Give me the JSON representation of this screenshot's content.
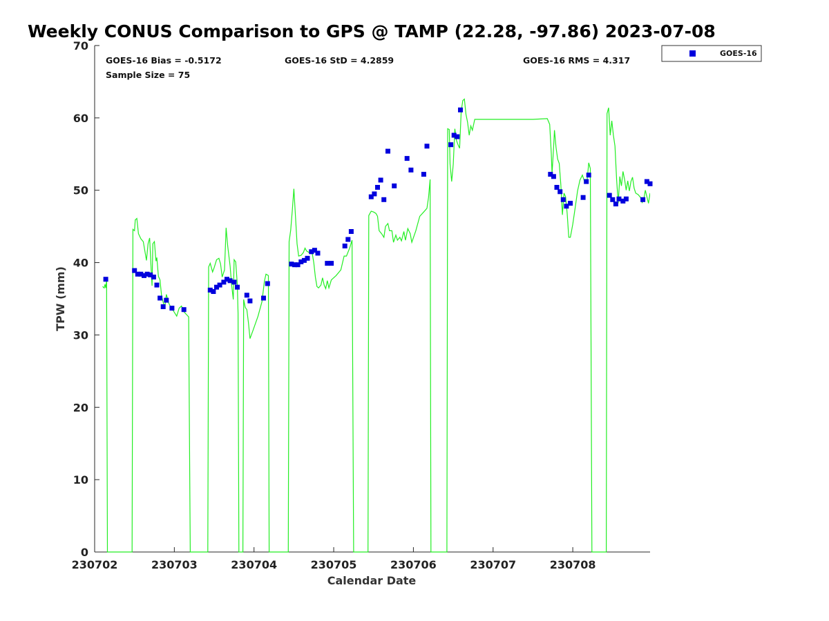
{
  "chart_data": {
    "type": "scatter",
    "title": "Weekly CONUS Comparison to GPS @ TAMP (22.28, -97.86) 2023-07-08",
    "xlabel": "Calendar Date",
    "ylabel": "TPW (mm)",
    "x_tick_labels": [
      "230702",
      "230703",
      "230704",
      "230705",
      "230706",
      "230707",
      "230708"
    ],
    "x_tick_days": [
      2,
      3,
      4,
      5,
      6,
      7,
      8
    ],
    "xlim": [
      2,
      8.97
    ],
    "ylim": [
      0,
      70
    ],
    "y_ticks": [
      0,
      10,
      20,
      30,
      40,
      50,
      60,
      70
    ],
    "grid": false,
    "legend_position": "top-right, outside",
    "stats": {
      "bias": "GOES-16 Bias = -0.5172",
      "std": "GOES-16 StD = 4.2859",
      "rms": "GOES-16 RMS = 4.317",
      "sample": "Sample Size = 75"
    },
    "colors": {
      "goes": "#0000dd",
      "gps": "#22ee22"
    },
    "series": [
      {
        "name": "GOES-16",
        "marker": "square",
        "points": [
          [
            2.14,
            37.7
          ],
          [
            2.5,
            38.9
          ],
          [
            2.54,
            38.4
          ],
          [
            2.58,
            38.4
          ],
          [
            2.62,
            38.2
          ],
          [
            2.66,
            38.4
          ],
          [
            2.7,
            38.3
          ],
          [
            2.74,
            38.0
          ],
          [
            2.78,
            36.9
          ],
          [
            2.82,
            35.1
          ],
          [
            2.86,
            33.9
          ],
          [
            2.9,
            34.8
          ],
          [
            2.97,
            33.7
          ],
          [
            3.12,
            33.5
          ],
          [
            3.45,
            36.2
          ],
          [
            3.49,
            36.0
          ],
          [
            3.53,
            36.6
          ],
          [
            3.57,
            36.9
          ],
          [
            3.62,
            37.3
          ],
          [
            3.66,
            37.7
          ],
          [
            3.7,
            37.5
          ],
          [
            3.75,
            37.3
          ],
          [
            3.79,
            36.6
          ],
          [
            3.91,
            35.5
          ],
          [
            3.95,
            34.7
          ],
          [
            4.12,
            35.1
          ],
          [
            4.17,
            37.1
          ],
          [
            4.47,
            39.8
          ],
          [
            4.51,
            39.7
          ],
          [
            4.55,
            39.7
          ],
          [
            4.59,
            40.1
          ],
          [
            4.63,
            40.3
          ],
          [
            4.67,
            40.6
          ],
          [
            4.72,
            41.5
          ],
          [
            4.76,
            41.7
          ],
          [
            4.8,
            41.3
          ],
          [
            4.92,
            39.9
          ],
          [
            4.97,
            39.9
          ],
          [
            5.14,
            42.3
          ],
          [
            5.18,
            43.2
          ],
          [
            5.22,
            44.3
          ],
          [
            5.47,
            49.1
          ],
          [
            5.51,
            49.5
          ],
          [
            5.55,
            50.4
          ],
          [
            5.59,
            51.4
          ],
          [
            5.63,
            48.7
          ],
          [
            5.68,
            55.4
          ],
          [
            5.76,
            50.6
          ],
          [
            5.92,
            54.4
          ],
          [
            5.97,
            52.8
          ],
          [
            6.13,
            52.2
          ],
          [
            6.17,
            56.1
          ],
          [
            6.47,
            56.3
          ],
          [
            6.51,
            57.6
          ],
          [
            6.55,
            57.4
          ],
          [
            6.59,
            61.1
          ],
          [
            7.72,
            52.2
          ],
          [
            7.76,
            51.9
          ],
          [
            7.8,
            50.4
          ],
          [
            7.84,
            49.8
          ],
          [
            7.88,
            48.7
          ],
          [
            7.92,
            47.8
          ],
          [
            7.97,
            48.2
          ],
          [
            8.13,
            49.0
          ],
          [
            8.17,
            51.2
          ],
          [
            8.2,
            52.1
          ],
          [
            8.46,
            49.3
          ],
          [
            8.5,
            48.7
          ],
          [
            8.54,
            48.1
          ],
          [
            8.58,
            48.8
          ],
          [
            8.63,
            48.5
          ],
          [
            8.67,
            48.8
          ],
          [
            8.88,
            48.7
          ],
          [
            8.93,
            51.2
          ],
          [
            8.97,
            50.9
          ]
        ]
      },
      {
        "name": "",
        "marker": "line",
        "points": [
          [
            2.1,
            36.7
          ],
          [
            2.12,
            36.5
          ],
          [
            2.13,
            37.0
          ],
          [
            2.14,
            36.5
          ],
          [
            2.15,
            37.6
          ],
          [
            2.16,
            0
          ],
          [
            2.47,
            0
          ],
          [
            2.48,
            44.6
          ],
          [
            2.5,
            44.4
          ],
          [
            2.51,
            45.9
          ],
          [
            2.53,
            46.1
          ],
          [
            2.55,
            44.0
          ],
          [
            2.58,
            43.3
          ],
          [
            2.61,
            42.9
          ],
          [
            2.63,
            41.6
          ],
          [
            2.65,
            40.3
          ],
          [
            2.67,
            42.6
          ],
          [
            2.69,
            43.4
          ],
          [
            2.71,
            38.9
          ],
          [
            2.72,
            36.8
          ],
          [
            2.73,
            42.6
          ],
          [
            2.75,
            42.9
          ],
          [
            2.77,
            40.2
          ],
          [
            2.78,
            40.7
          ],
          [
            2.8,
            38.1
          ],
          [
            2.82,
            37.6
          ],
          [
            2.84,
            35.4
          ],
          [
            2.86,
            34.5
          ],
          [
            2.88,
            33.8
          ],
          [
            2.9,
            35.6
          ],
          [
            2.93,
            34.4
          ],
          [
            2.96,
            33.7
          ],
          [
            2.99,
            33.3
          ],
          [
            3.03,
            32.6
          ],
          [
            3.06,
            33.7
          ],
          [
            3.09,
            34.0
          ],
          [
            3.12,
            33.2
          ],
          [
            3.18,
            32.5
          ],
          [
            3.2,
            0
          ],
          [
            3.42,
            0
          ],
          [
            3.43,
            39.4
          ],
          [
            3.45,
            39.9
          ],
          [
            3.48,
            38.7
          ],
          [
            3.5,
            39.3
          ],
          [
            3.53,
            40.4
          ],
          [
            3.56,
            40.6
          ],
          [
            3.58,
            39.8
          ],
          [
            3.6,
            38.0
          ],
          [
            3.63,
            39.0
          ],
          [
            3.65,
            44.8
          ],
          [
            3.67,
            42.3
          ],
          [
            3.7,
            39.5
          ],
          [
            3.72,
            36.8
          ],
          [
            3.74,
            34.9
          ],
          [
            3.75,
            40.4
          ],
          [
            3.77,
            40.1
          ],
          [
            3.79,
            37.0
          ],
          [
            3.8,
            33.0
          ],
          [
            3.81,
            0
          ],
          [
            3.86,
            0
          ],
          [
            3.87,
            34.9
          ],
          [
            3.89,
            33.8
          ],
          [
            3.91,
            33.5
          ],
          [
            3.93,
            31.7
          ],
          [
            3.95,
            29.5
          ],
          [
            3.99,
            30.7
          ],
          [
            4.05,
            32.6
          ],
          [
            4.1,
            34.6
          ],
          [
            4.13,
            37.4
          ],
          [
            4.15,
            38.4
          ],
          [
            4.18,
            38.2
          ],
          [
            4.19,
            0
          ],
          [
            4.43,
            0
          ],
          [
            4.44,
            42.9
          ],
          [
            4.46,
            44.5
          ],
          [
            4.48,
            47.2
          ],
          [
            4.5,
            50.2
          ],
          [
            4.52,
            46.4
          ],
          [
            4.54,
            42.6
          ],
          [
            4.56,
            40.9
          ],
          [
            4.59,
            41.0
          ],
          [
            4.62,
            41.4
          ],
          [
            4.64,
            42.0
          ],
          [
            4.66,
            41.6
          ],
          [
            4.69,
            41.4
          ],
          [
            4.71,
            41.6
          ],
          [
            4.73,
            41.3
          ],
          [
            4.75,
            40.0
          ],
          [
            4.77,
            38.0
          ],
          [
            4.79,
            36.7
          ],
          [
            4.81,
            36.5
          ],
          [
            4.84,
            36.9
          ],
          [
            4.86,
            37.9
          ],
          [
            4.88,
            36.9
          ],
          [
            4.9,
            36.4
          ],
          [
            4.92,
            37.5
          ],
          [
            4.94,
            36.5
          ],
          [
            4.97,
            37.6
          ],
          [
            5.03,
            38.2
          ],
          [
            5.09,
            39.0
          ],
          [
            5.13,
            40.9
          ],
          [
            5.16,
            40.9
          ],
          [
            5.2,
            42.0
          ],
          [
            5.23,
            43.1
          ],
          [
            5.25,
            0
          ],
          [
            5.43,
            0
          ],
          [
            5.44,
            46.5
          ],
          [
            5.47,
            47.1
          ],
          [
            5.5,
            47.0
          ],
          [
            5.53,
            46.8
          ],
          [
            5.55,
            46.4
          ],
          [
            5.57,
            44.4
          ],
          [
            5.6,
            44.0
          ],
          [
            5.63,
            43.5
          ],
          [
            5.65,
            45.0
          ],
          [
            5.68,
            45.4
          ],
          [
            5.7,
            44.4
          ],
          [
            5.73,
            44.4
          ],
          [
            5.75,
            42.8
          ],
          [
            5.78,
            43.8
          ],
          [
            5.8,
            43.1
          ],
          [
            5.83,
            43.5
          ],
          [
            5.85,
            43.0
          ],
          [
            5.88,
            44.3
          ],
          [
            5.9,
            43.1
          ],
          [
            5.93,
            44.7
          ],
          [
            5.96,
            44.0
          ],
          [
            5.98,
            42.8
          ],
          [
            6.03,
            44.4
          ],
          [
            6.08,
            46.4
          ],
          [
            6.13,
            47.0
          ],
          [
            6.17,
            47.5
          ],
          [
            6.19,
            49.0
          ],
          [
            6.21,
            51.5
          ],
          [
            6.22,
            0
          ],
          [
            6.42,
            0
          ],
          [
            6.43,
            58.5
          ],
          [
            6.45,
            58.4
          ],
          [
            6.46,
            53.6
          ],
          [
            6.48,
            51.2
          ],
          [
            6.5,
            53.6
          ],
          [
            6.52,
            58.5
          ],
          [
            6.54,
            56.9
          ],
          [
            6.56,
            56.3
          ],
          [
            6.58,
            55.8
          ],
          [
            6.6,
            60.9
          ],
          [
            6.62,
            62.4
          ],
          [
            6.64,
            62.6
          ],
          [
            6.66,
            60.5
          ],
          [
            6.68,
            59.4
          ],
          [
            6.7,
            57.6
          ],
          [
            6.72,
            58.9
          ],
          [
            6.74,
            58.3
          ],
          [
            6.77,
            59.8
          ],
          [
            7.0,
            59.8
          ],
          [
            7.3,
            59.8
          ],
          [
            7.5,
            59.8
          ],
          [
            7.68,
            59.9
          ],
          [
            7.71,
            59.1
          ],
          [
            7.73,
            55.1
          ],
          [
            7.74,
            52.3
          ],
          [
            7.76,
            56.0
          ],
          [
            7.77,
            58.3
          ],
          [
            7.79,
            55.9
          ],
          [
            7.81,
            54.3
          ],
          [
            7.83,
            53.7
          ],
          [
            7.85,
            50.8
          ],
          [
            7.87,
            46.6
          ],
          [
            7.89,
            49.6
          ],
          [
            7.91,
            49.1
          ],
          [
            7.93,
            46.8
          ],
          [
            7.95,
            43.5
          ],
          [
            7.97,
            43.5
          ],
          [
            8.0,
            45.3
          ],
          [
            8.03,
            47.6
          ],
          [
            8.06,
            49.9
          ],
          [
            8.09,
            51.4
          ],
          [
            8.12,
            52.1
          ],
          [
            8.15,
            51.1
          ],
          [
            8.18,
            51.4
          ],
          [
            8.2,
            53.8
          ],
          [
            8.22,
            53.0
          ],
          [
            8.24,
            0
          ],
          [
            8.42,
            0
          ],
          [
            8.43,
            60.6
          ],
          [
            8.45,
            61.4
          ],
          [
            8.47,
            57.6
          ],
          [
            8.49,
            59.6
          ],
          [
            8.51,
            57.6
          ],
          [
            8.53,
            56.1
          ],
          [
            8.55,
            51.4
          ],
          [
            8.57,
            48.2
          ],
          [
            8.59,
            51.9
          ],
          [
            8.61,
            50.6
          ],
          [
            8.63,
            52.6
          ],
          [
            8.65,
            51.5
          ],
          [
            8.67,
            50.0
          ],
          [
            8.69,
            51.3
          ],
          [
            8.71,
            49.9
          ],
          [
            8.73,
            51.2
          ],
          [
            8.75,
            51.8
          ],
          [
            8.77,
            50.3
          ],
          [
            8.79,
            49.6
          ],
          [
            8.82,
            49.4
          ],
          [
            8.85,
            49.0
          ],
          [
            8.87,
            48.3
          ],
          [
            8.89,
            48.7
          ],
          [
            8.91,
            50.0
          ],
          [
            8.93,
            49.1
          ],
          [
            8.95,
            48.2
          ],
          [
            8.97,
            49.6
          ]
        ]
      }
    ]
  }
}
